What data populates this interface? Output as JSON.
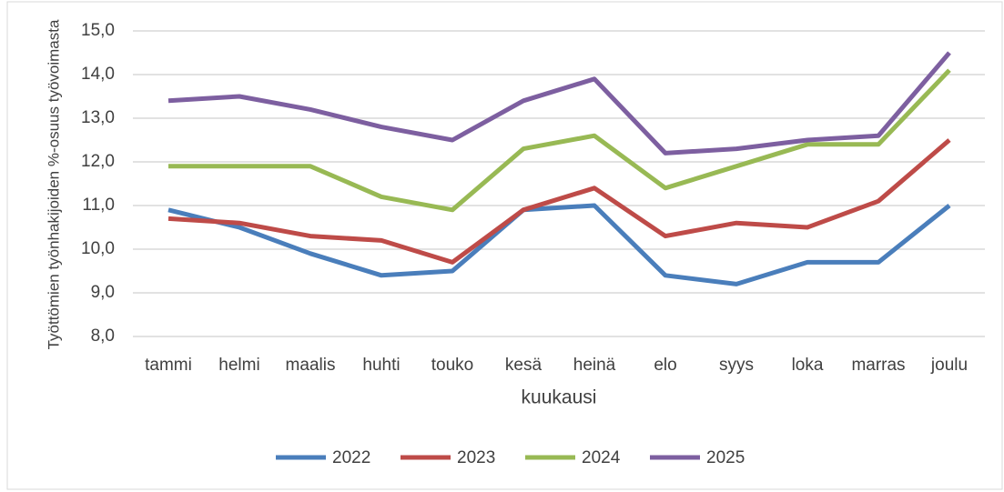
{
  "chart_data": {
    "type": "line",
    "y_label": "Työttömien työnhakijoiden %-osuus työvoimasta",
    "x_label": "kuukausi",
    "categories": [
      "tammi",
      "helmi",
      "maalis",
      "huhti",
      "touko",
      "kesä",
      "heinä",
      "elo",
      "syys",
      "loka",
      "marras",
      "joulu"
    ],
    "series": [
      {
        "name": "2022",
        "color": "#4a7ebb",
        "values": [
          10.9,
          10.5,
          9.9,
          9.4,
          9.5,
          10.9,
          11.0,
          9.4,
          9.2,
          9.7,
          9.7,
          11.0
        ]
      },
      {
        "name": "2023",
        "color": "#be4b48",
        "values": [
          10.7,
          10.6,
          10.3,
          10.2,
          9.7,
          10.9,
          11.4,
          10.3,
          10.6,
          10.5,
          11.1,
          12.5
        ]
      },
      {
        "name": "2024",
        "color": "#98b954",
        "values": [
          11.9,
          11.9,
          11.9,
          11.2,
          10.9,
          12.3,
          12.6,
          11.4,
          11.9,
          12.4,
          12.4,
          14.1
        ]
      },
      {
        "name": "2025",
        "color": "#7d5fa0",
        "values": [
          13.4,
          13.5,
          13.2,
          12.8,
          12.5,
          13.4,
          13.9,
          12.2,
          12.3,
          12.5,
          12.6,
          14.5
        ]
      }
    ],
    "ylim": [
      8,
      15
    ],
    "yticks": [
      {
        "value": 8,
        "label": "8,0"
      },
      {
        "value": 9,
        "label": "9,0"
      },
      {
        "value": 10,
        "label": "10,0"
      },
      {
        "value": 11,
        "label": "11,0"
      },
      {
        "value": 12,
        "label": "12,0"
      },
      {
        "value": 13,
        "label": "13,0"
      },
      {
        "value": 14,
        "label": "14,0"
      },
      {
        "value": 15,
        "label": "15,0"
      }
    ],
    "grid": true,
    "legend": "bottom"
  }
}
